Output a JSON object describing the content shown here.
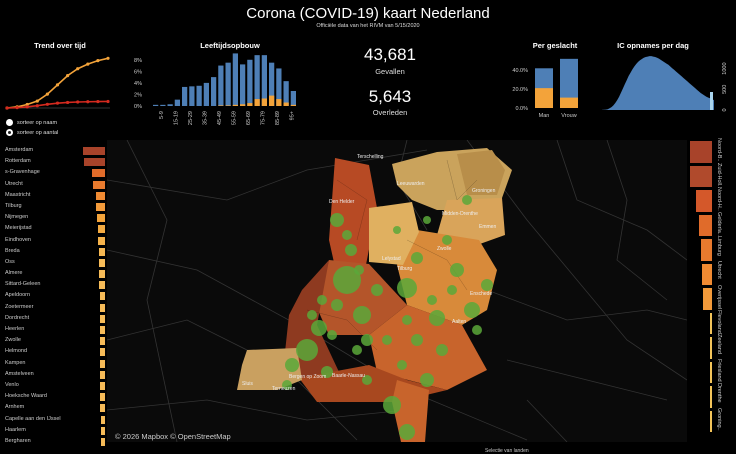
{
  "header": {
    "title": "Corona (COVID-19) kaart Nederland",
    "subtitle": "Officiële data van het RIVM van 5/15/2020"
  },
  "trend": {
    "title": "Trend over tijd",
    "radio1": "sorteer op naam",
    "radio2": "sorteer op aantal"
  },
  "age": {
    "title": "Leeftijdsopbouw",
    "y_ticks": [
      "8%",
      "6%",
      "4%",
      "2%",
      "0%"
    ],
    "categories": [
      "5-9",
      "15-19",
      "25-29",
      "35-39",
      "45-49",
      "55-59",
      "65-69",
      "75-79",
      "85-89",
      "95+"
    ]
  },
  "stats": {
    "cases_value": "43,681",
    "cases_label": "Gevallen",
    "deaths_value": "5,643",
    "deaths_label": "Overleden"
  },
  "gender": {
    "title": "Per geslacht",
    "y_ticks": [
      "40.0%",
      "20.0%",
      "0.0%"
    ],
    "categories": [
      "Man",
      "Vrouw"
    ]
  },
  "ic": {
    "title": "IC opnames per dag",
    "y_ticks": [
      "1000",
      "500",
      "0"
    ]
  },
  "cities": {
    "names": [
      "Amsterdam",
      "Rotterdam",
      "s-Gravenhage",
      "Utrecht",
      "Maastricht",
      "Tilburg",
      "Nijmegen",
      "Meierijstad",
      "Eindhoven",
      "Breda",
      "Oss",
      "Almere",
      "Sittard-Geleen",
      "Apeldoorn",
      "Zoetermeer",
      "Dordrecht",
      "Heerlen",
      "Zwolle",
      "Helmond",
      "Kampen",
      "Amstelveen",
      "Venlo",
      "Hoeksche Waard",
      "Arnhem",
      "Capelle aan den IJssel",
      "Haarlem",
      "Bergharen"
    ]
  },
  "provinces": {
    "names": [
      "Noord-B..",
      "Zuid-Holl..",
      "Noord-H..",
      "Gelderla..",
      "Limburg",
      "Utrecht",
      "Overijssel",
      "Flevoland",
      "Zeeland",
      "Friesland",
      "Drenthe",
      "Groning.."
    ]
  },
  "map": {
    "copyright": "© 2026 Mapbox © OpenStreetMap",
    "labels": {
      "terschelling": "Terschelling",
      "leeuwarden": "Leeuwarden",
      "groningen": "Groningen",
      "denhelder": "Den Helder",
      "drenthe": "Midden-Drenthe",
      "emmen": "Emmen",
      "lelystad": "Lelystad",
      "zwolle": "Zwolle",
      "tilburg": "Tilburg",
      "enschede": "Enschede",
      "aalten": "Aalten",
      "baarle": "Baarle-Nassau",
      "sluis": "Sluis",
      "terneuzen": "Terneuzen",
      "bergen": "Bergen op Zoom"
    }
  },
  "footer": {
    "legend_title": "Selectie van landen"
  },
  "chart_data": [
    {
      "type": "line",
      "title": "Trend over tijd",
      "series": [
        {
          "values": [
            0,
            1,
            3,
            6,
            12,
            20,
            28,
            34,
            38,
            41,
            43
          ]
        },
        {
          "values": [
            0,
            0.3,
            1,
            2,
            3.2,
            4.2,
            4.8,
            5.2,
            5.4,
            5.55,
            5.64
          ]
        }
      ]
    },
    {
      "type": "bar",
      "title": "Leeftijdsopbouw",
      "ylim": [
        0,
        9
      ],
      "categories": [
        "0-4",
        "5-9",
        "10-14",
        "15-19",
        "20-24",
        "25-29",
        "30-34",
        "35-39",
        "40-44",
        "45-49",
        "50-54",
        "55-59",
        "60-64",
        "65-69",
        "70-74",
        "75-79",
        "80-84",
        "85-89",
        "90-94",
        "95+"
      ],
      "series": [
        {
          "values": [
            0.2,
            0.2,
            0.3,
            1.1,
            3.3,
            3.4,
            3.5,
            4.0,
            5.0,
            7.0,
            7.5,
            9.1,
            7.2,
            8.0,
            8.8,
            8.8,
            7.5,
            6.5,
            4.3,
            2.6
          ]
        },
        {
          "values": [
            0,
            0,
            0,
            0,
            0,
            0,
            0,
            0,
            0,
            0.1,
            0.1,
            0.2,
            0.3,
            0.5,
            1.2,
            1.3,
            1.8,
            1.2,
            0.6,
            0.2
          ]
        }
      ]
    },
    {
      "type": "bar",
      "title": "Per geslacht",
      "categories": [
        "Man",
        "Vrouw"
      ],
      "ylim": [
        0,
        55
      ],
      "series": [
        {
          "values": [
            42,
            52
          ]
        },
        {
          "values": [
            21,
            11
          ]
        }
      ]
    },
    {
      "type": "area",
      "title": "IC opnames per dag",
      "ylim": [
        0,
        1400
      ],
      "values": [
        2,
        5,
        10,
        20,
        40,
        70,
        110,
        170,
        240,
        320,
        420,
        520,
        620,
        720,
        820,
        900,
        980,
        1050,
        1110,
        1160,
        1200,
        1230,
        1260,
        1280,
        1290,
        1300,
        1300,
        1290,
        1280,
        1260,
        1240,
        1210,
        1180,
        1150,
        1120,
        1090,
        1050,
        1010,
        970,
        930,
        890,
        850,
        810,
        770,
        730,
        690,
        650,
        610,
        570,
        530,
        490,
        450,
        410,
        380,
        350,
        320,
        300,
        280,
        260,
        240
      ]
    },
    {
      "type": "bar",
      "title": "Gemeenten",
      "categories": [
        "Amsterdam",
        "Rotterdam",
        "s-Gravenhage",
        "Utrecht",
        "Maastricht",
        "Tilburg",
        "Nijmegen",
        "Meierijstad",
        "Eindhoven",
        "Breda",
        "Oss",
        "Almere",
        "Sittard-Geleen",
        "Apeldoorn",
        "Zoetermeer",
        "Dordrecht",
        "Heerlen",
        "Zwolle",
        "Helmond",
        "Kampen",
        "Amstelveen",
        "Venlo",
        "Hoeksche Waard",
        "Arnhem",
        "Capelle aan den IJssel",
        "Haarlem",
        "Bergharen"
      ],
      "values": [
        100,
        97,
        60,
        55,
        42,
        40,
        35,
        33,
        30,
        29,
        28,
        27,
        26,
        25,
        25,
        24,
        24,
        23,
        23,
        22,
        22,
        21,
        21,
        21,
        20,
        20,
        19
      ]
    },
    {
      "type": "bar",
      "title": "Provincies",
      "categories": [
        "Noord-B..",
        "Zuid-Holl..",
        "Noord-H..",
        "Gelderla..",
        "Limburg",
        "Utrecht",
        "Overijssel",
        "Flevoland",
        "Zeeland",
        "Friesland",
        "Drenthe",
        "Groning.."
      ],
      "values": [
        100,
        98,
        75,
        60,
        50,
        45,
        40,
        6,
        5,
        4,
        3,
        3
      ]
    }
  ]
}
